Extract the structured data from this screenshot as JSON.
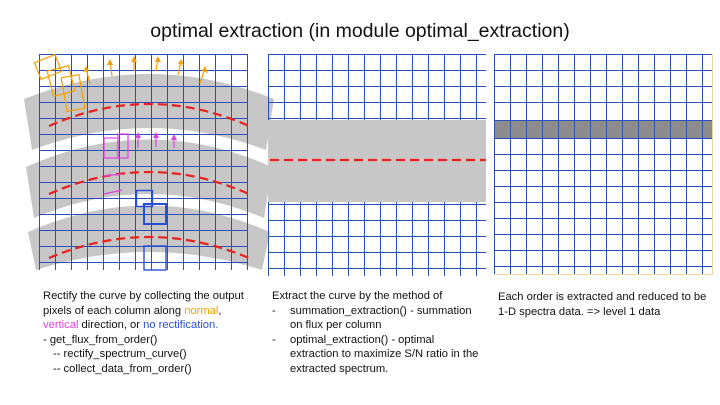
{
  "title": "optimal extraction (in module optimal_extraction)",
  "panel1": {
    "caption_intro": "Rectify the curve by collecting the output pixels of each column along",
    "word_normal": "normal",
    "word_sep": ", ",
    "word_vertical": "vertical",
    "word_direction": " direction,  or ",
    "word_no_rect": "no rectification.",
    "func_main": "- get_flux_from_order()",
    "func_sub1": "-- rectify_spectrum_curve()",
    "func_sub2": "-- collect_data_from_order()"
  },
  "panel2": {
    "caption_intro": "Extract the curve by the method of",
    "bullets": [
      {
        "dash": "-",
        "text": "summation_extraction() - summation on flux per column"
      },
      {
        "dash": "-",
        "text": "optimal_extraction() - optimal extraction to maximize S/N ratio in the extracted spectrum."
      }
    ]
  },
  "panel3": {
    "caption": "Each order is extracted and reduced to be 1-D spectra data.  => level 1 data"
  },
  "colors": {
    "grid": "#2a4fb8",
    "band": "#c7c7c7",
    "trace": "#e8201e",
    "normal": "#f5a000",
    "vertical": "#e23fe6",
    "extracted_row": "#8c8c8c"
  }
}
